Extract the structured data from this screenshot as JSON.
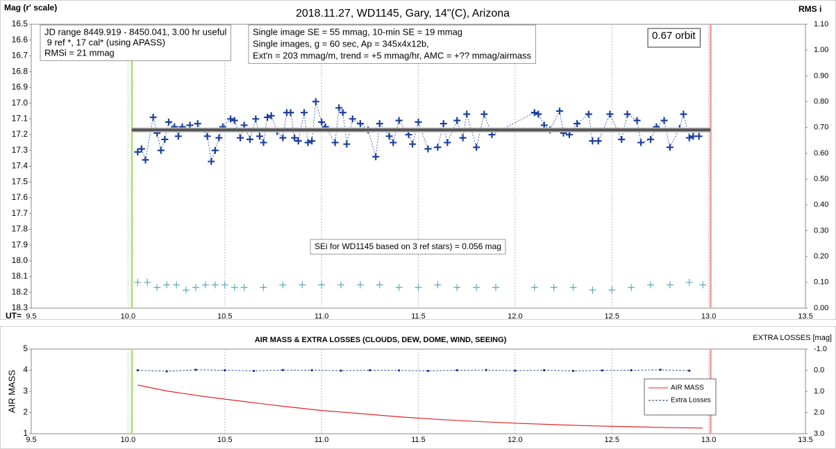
{
  "chart_data": [
    {
      "type": "line",
      "title": "2018.11.27, WD1145, Gary, 14\"(C), Arizona",
      "ylabel": "Mag (r' scale)",
      "y2label": "RMS i",
      "xlabel": "UT=",
      "xlim": [
        9.5,
        13.5
      ],
      "xticks": [
        9.5,
        {
          "value": 10,
          "label": "10.0"
        },
        10.5,
        {
          "value": 11,
          "label": "11.0"
        },
        11.5,
        {
          "value": 12,
          "label": "12.0"
        },
        12.5,
        {
          "value": 13,
          "label": "13.0"
        },
        13.5
      ],
      "ylim": [
        16.5,
        18.3
      ],
      "y_inverted": true,
      "yticks": [
        16.5,
        16.6,
        16.7,
        16.8,
        16.9,
        {
          "value": 17,
          "label": "17.0"
        },
        17.1,
        17.2,
        17.3,
        17.4,
        17.5,
        17.6,
        17.7,
        17.8,
        17.9,
        {
          "value": 18,
          "label": "18.0"
        },
        18.1,
        18.2,
        18.3
      ],
      "y2lim": [
        0,
        1.1
      ],
      "y2ticks": [
        {
          "value": 0,
          "label": "0.00"
        },
        {
          "value": 0.1,
          "label": "0.10"
        },
        {
          "value": 0.2,
          "label": "0.20"
        },
        {
          "value": 0.3,
          "label": "0.30"
        },
        {
          "value": 0.4,
          "label": "0.40"
        },
        {
          "value": 0.5,
          "label": "0.50"
        },
        {
          "value": 0.6,
          "label": "0.60"
        },
        {
          "value": 0.7,
          "label": "0.70"
        },
        {
          "value": 0.8,
          "label": "0.80"
        },
        {
          "value": 0.9,
          "label": "0.90"
        },
        {
          "value": 1,
          "label": "1.00"
        },
        {
          "value": 1.1,
          "label": "1.10"
        }
      ],
      "grid": "x",
      "vlines": [
        10.02,
        13.01
      ],
      "vline_colors": [
        "#b5dd8a",
        "#f4a3a8"
      ],
      "series": [
        {
          "color": "#1b3f9a",
          "marker": "+",
          "dash": "2,2",
          "x": [
            10.05,
            10.07,
            10.09,
            10.13,
            10.15,
            10.17,
            10.19,
            10.21,
            10.24,
            10.26,
            10.28,
            10.32,
            10.36,
            10.41,
            10.43,
            10.45,
            10.47,
            10.49,
            10.53,
            10.55,
            10.58,
            10.6,
            10.63,
            10.66,
            10.68,
            10.7,
            10.72,
            10.74,
            10.77,
            10.8,
            10.82,
            10.84,
            10.86,
            10.88,
            10.91,
            10.93,
            10.95,
            10.97,
            11.0,
            11.02,
            11.07,
            11.09,
            11.11,
            11.13,
            11.16,
            11.2,
            11.24,
            11.28,
            11.3,
            11.35,
            11.37,
            11.4,
            11.45,
            11.47,
            11.5,
            11.55,
            11.6,
            11.63,
            11.65,
            11.7,
            11.73,
            11.75,
            11.8,
            11.84,
            11.88,
            12.1,
            12.12,
            12.15,
            12.18,
            12.23,
            12.25,
            12.28,
            12.32,
            12.38,
            12.4,
            12.43,
            12.49,
            12.55,
            12.58,
            12.63,
            12.65,
            12.7,
            12.73,
            12.77,
            12.8,
            12.85,
            12.87,
            12.9,
            12.92,
            12.95
          ],
          "values": [
            17.31,
            17.29,
            17.36,
            17.09,
            17.19,
            17.3,
            17.23,
            17.12,
            17.15,
            17.21,
            17.15,
            17.14,
            17.13,
            17.21,
            17.37,
            17.3,
            17.22,
            17.15,
            17.1,
            17.11,
            17.22,
            17.14,
            17.23,
            17.1,
            17.21,
            17.25,
            17.09,
            17.08,
            17.18,
            17.22,
            17.06,
            17.06,
            17.22,
            17.24,
            17.06,
            17.25,
            17.24,
            16.99,
            17.12,
            17.15,
            17.25,
            17.03,
            17.06,
            17.26,
            17.1,
            17.13,
            17.17,
            17.34,
            17.13,
            17.21,
            17.25,
            17.11,
            17.2,
            17.26,
            17.12,
            17.29,
            17.28,
            17.13,
            17.25,
            17.11,
            17.22,
            17.07,
            17.28,
            17.07,
            17.2,
            17.06,
            17.07,
            17.14,
            17.17,
            17.05,
            17.19,
            17.2,
            17.13,
            17.07,
            17.24,
            17.24,
            17.07,
            17.23,
            17.07,
            17.11,
            17.25,
            17.23,
            17.15,
            17.11,
            17.28,
            17.16,
            17.07,
            17.22,
            17.21,
            17.21
          ]
        },
        {
          "color": "#5fa8b4",
          "marker": "+",
          "axis": "y2",
          "x": [
            10.05,
            10.1,
            10.15,
            10.2,
            10.25,
            10.3,
            10.35,
            10.4,
            10.45,
            10.5,
            10.55,
            10.6,
            10.7,
            10.8,
            10.9,
            11.0,
            11.1,
            11.2,
            11.3,
            11.4,
            11.5,
            11.6,
            11.7,
            11.8,
            11.9,
            12.1,
            12.2,
            12.3,
            12.4,
            12.5,
            12.6,
            12.7,
            12.8,
            12.9,
            12.97
          ],
          "values": [
            0.1,
            0.1,
            0.08,
            0.09,
            0.09,
            0.07,
            0.08,
            0.09,
            0.09,
            0.09,
            0.08,
            0.08,
            0.08,
            0.09,
            0.09,
            0.09,
            0.09,
            0.09,
            0.09,
            0.08,
            0.08,
            0.09,
            0.08,
            0.08,
            0.08,
            0.08,
            0.08,
            0.08,
            0.07,
            0.07,
            0.08,
            0.09,
            0.09,
            0.1,
            0.09
          ]
        },
        {
          "color": "#555555",
          "width": 4,
          "x": [
            10.02,
            13.01
          ],
          "values": [
            17.17,
            17.17
          ]
        }
      ],
      "annotations": [
        {
          "lines": [
            "JD range 8449.919 - 8450.041, 3.00 hr useful",
            " 9 ref *, 17 cal* (using APASS)",
            "RMSi = 21 mmag"
          ]
        },
        {
          "lines": [
            "Single image SE = 55 mmag, 10-min SE = 19 mmag",
            "Single images, g = 60 sec, Ap = 345x4x12b,",
            "Ext'n = 203 mmag/m, trend = +5 mmag/hr, AMC = +?? mmag/airmass"
          ]
        },
        {
          "lines": [
            "0.67 orbit"
          ]
        },
        {
          "lines": [
            "SEi for WD1145 based on 3 ref stars) = 0.056 mag"
          ]
        }
      ]
    },
    {
      "type": "line",
      "title": "AIR MASS & EXTRA LOSSES (CLOUDS, DEW, DOME, WIND, SEEING)",
      "ylabel": "AIR MASS",
      "y2label": "EXTRA LOSSES [mag]",
      "xlim": [
        9.5,
        13.5
      ],
      "xticks": [
        9.5,
        {
          "value": 10,
          "label": "10.0"
        },
        10.5,
        {
          "value": 11,
          "label": "11.0"
        },
        11.5,
        {
          "value": 12,
          "label": "12.0"
        },
        12.5,
        {
          "value": 13,
          "label": "13.0"
        },
        13.5
      ],
      "ylim": [
        1,
        5
      ],
      "yticks": [
        1,
        2,
        3,
        4,
        5
      ],
      "y2lim": [
        -1,
        3
      ],
      "y2_inverted": true,
      "y2ticks": [
        {
          "value": -1,
          "label": "-1.0"
        },
        {
          "value": 0,
          "label": "0.0"
        },
        {
          "value": 1,
          "label": "1.0"
        },
        {
          "value": 2,
          "label": "2.0"
        },
        {
          "value": 3,
          "label": "3.0"
        }
      ],
      "grid": "x",
      "legend": "right",
      "vlines": [
        10.02,
        13.01
      ],
      "vline_colors": [
        "#b5dd8a",
        "#f4a3a8"
      ],
      "series": [
        {
          "name": "AIR MASS",
          "color": "#e02424",
          "x": [
            10.05,
            10.2,
            10.4,
            10.6,
            10.8,
            11.0,
            11.2,
            11.4,
            11.6,
            11.8,
            12.0,
            12.2,
            12.4,
            12.6,
            12.8,
            12.97
          ],
          "values": [
            3.3,
            3.02,
            2.75,
            2.52,
            2.3,
            2.1,
            1.95,
            1.8,
            1.68,
            1.58,
            1.5,
            1.43,
            1.37,
            1.33,
            1.29,
            1.27
          ]
        },
        {
          "name": "Extra Losses",
          "color": "#1a2a80",
          "marker": "dot",
          "dash": "3,2",
          "axis": "y2",
          "x": [
            10.05,
            10.2,
            10.35,
            10.5,
            10.65,
            10.8,
            10.95,
            11.1,
            11.25,
            11.4,
            11.55,
            11.7,
            11.85,
            12.0,
            12.15,
            12.3,
            12.45,
            12.6,
            12.75,
            12.9
          ],
          "values": [
            0.0,
            0.05,
            -0.02,
            0.0,
            0.03,
            -0.01,
            0.0,
            0.02,
            0.0,
            0.01,
            0.03,
            0.0,
            -0.01,
            0.02,
            0.0,
            0.03,
            0.01,
            0.0,
            -0.02,
            0.02
          ]
        }
      ]
    }
  ]
}
